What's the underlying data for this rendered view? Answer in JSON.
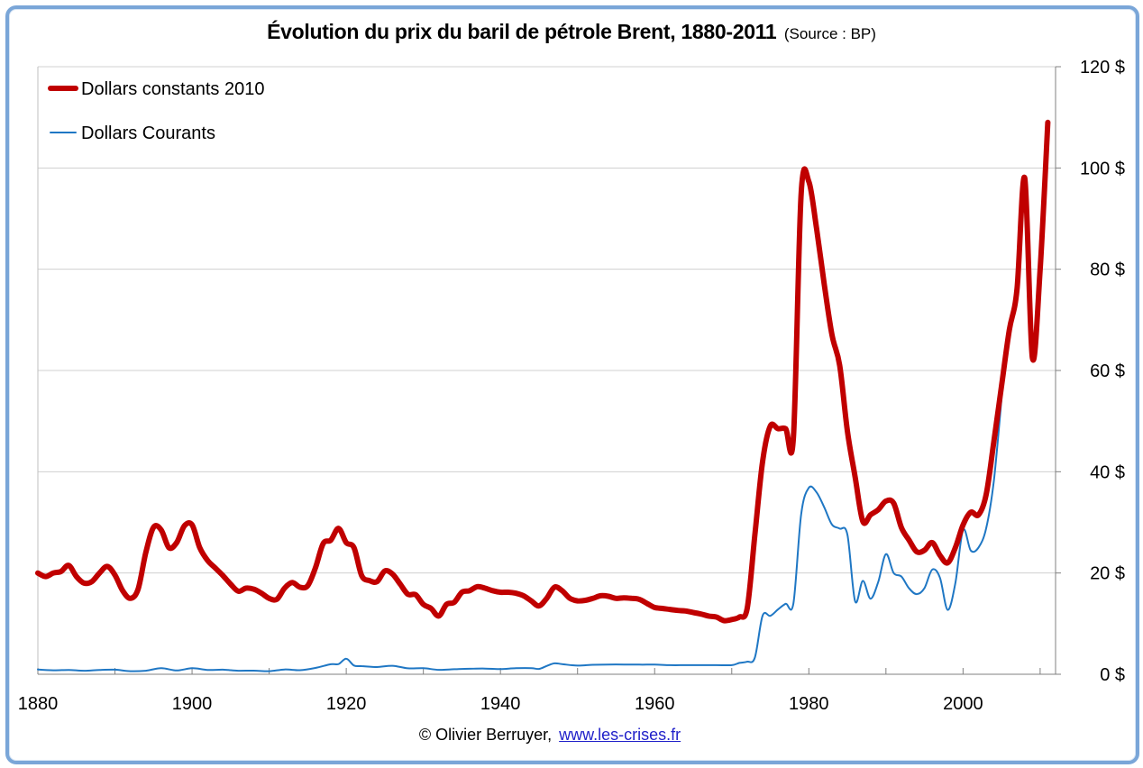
{
  "page": {
    "title": "Évolution du prix du baril de pétrole Brent, 1880-2011",
    "subtitle": "(Source : BP)",
    "credit_author": "© Olivier Berruyer,",
    "credit_link": "www.les-crises.fr"
  },
  "colors": {
    "constant": "#c00000",
    "current": "#1f77c4",
    "grid": "#d0d0d0",
    "frame": "#7aa6d8"
  },
  "chart_data": {
    "type": "line",
    "title": "Évolution du prix du baril de pétrole Brent, 1880-2011",
    "subtitle": "(Source : BP)",
    "xlabel": "",
    "ylabel": "",
    "xlim": [
      1880,
      2012
    ],
    "ylim": [
      0,
      120
    ],
    "x_ticks": [
      1880,
      1900,
      1920,
      1940,
      1960,
      1980,
      2000
    ],
    "x_tick_labels": [
      "1880",
      "1900",
      "1920",
      "1940",
      "1960",
      "1980",
      "2000"
    ],
    "y_ticks": [
      0,
      20,
      40,
      60,
      80,
      100,
      120
    ],
    "y_tick_labels": [
      "0 $",
      "20 $",
      "40 $",
      "60 $",
      "80 $",
      "100 $",
      "120 $"
    ],
    "y_axis_side": "right",
    "grid": "horizontal",
    "legend_position": "top-left",
    "series": [
      {
        "name": "Dollars constants 2010",
        "color": "#c00000",
        "line_style": "thick",
        "x": [
          1880,
          1881,
          1882,
          1883,
          1884,
          1885,
          1886,
          1887,
          1888,
          1889,
          1890,
          1891,
          1892,
          1893,
          1894,
          1895,
          1896,
          1897,
          1898,
          1899,
          1900,
          1901,
          1902,
          1903,
          1904,
          1905,
          1906,
          1907,
          1908,
          1909,
          1910,
          1911,
          1912,
          1913,
          1914,
          1915,
          1916,
          1917,
          1918,
          1919,
          1920,
          1921,
          1922,
          1923,
          1924,
          1925,
          1926,
          1927,
          1928,
          1929,
          1930,
          1931,
          1932,
          1933,
          1934,
          1935,
          1936,
          1937,
          1938,
          1939,
          1940,
          1941,
          1942,
          1943,
          1944,
          1945,
          1946,
          1947,
          1948,
          1949,
          1950,
          1951,
          1952,
          1953,
          1954,
          1955,
          1956,
          1957,
          1958,
          1959,
          1960,
          1961,
          1962,
          1963,
          1964,
          1965,
          1966,
          1967,
          1968,
          1969,
          1970,
          1971,
          1972,
          1973,
          1974,
          1975,
          1976,
          1977,
          1978,
          1979,
          1980,
          1981,
          1982,
          1983,
          1984,
          1985,
          1986,
          1987,
          1988,
          1989,
          1990,
          1991,
          1992,
          1993,
          1994,
          1995,
          1996,
          1997,
          1998,
          1999,
          2000,
          2001,
          2002,
          2003,
          2004,
          2005,
          2006,
          2007,
          2008,
          2009,
          2010,
          2011
        ],
        "values": [
          20,
          19.3,
          20,
          20.3,
          21.5,
          19.3,
          18,
          18.3,
          20,
          21.3,
          19.6,
          16.5,
          15,
          16.8,
          24,
          29,
          28.5,
          25,
          26,
          29.3,
          29.5,
          25,
          22.5,
          21,
          19.5,
          17.8,
          16.4,
          17,
          16.8,
          16,
          15,
          14.8,
          17,
          18.1,
          17.2,
          17.5,
          21,
          25.8,
          26.5,
          28.8,
          26,
          25,
          19.5,
          18.5,
          18.3,
          20.4,
          19.8,
          17.8,
          15.8,
          15.7,
          13.8,
          13,
          11.5,
          13.8,
          14.2,
          16.2,
          16.5,
          17.3,
          17,
          16.5,
          16.2,
          16.2,
          16,
          15.5,
          14.5,
          13.5,
          15,
          17.2,
          16.5,
          15,
          14.5,
          14.6,
          15,
          15.5,
          15.4,
          15,
          15.1,
          15,
          14.8,
          14,
          13.2,
          13,
          12.8,
          12.6,
          12.5,
          12.2,
          11.9,
          11.5,
          11.3,
          10.6,
          10.8,
          11.3,
          13,
          27.5,
          42,
          49,
          48.5,
          48.5,
          46.8,
          95,
          97.3,
          88,
          77,
          67,
          61,
          48,
          39,
          30.2,
          31.5,
          32.5,
          34.2,
          33.8,
          29,
          26.5,
          24.2,
          24.5,
          26,
          23.5,
          22,
          25,
          29.5,
          32,
          31.5,
          35.5,
          46,
          57,
          68,
          76,
          98,
          62.5,
          80,
          109
        ]
      },
      {
        "name": "Dollars Courants",
        "color": "#1f77c4",
        "line_style": "thin",
        "x": [
          1880,
          1882,
          1884,
          1886,
          1888,
          1890,
          1892,
          1894,
          1896,
          1898,
          1900,
          1902,
          1904,
          1906,
          1908,
          1910,
          1912,
          1914,
          1916,
          1918,
          1919,
          1920,
          1921,
          1922,
          1924,
          1926,
          1928,
          1930,
          1932,
          1934,
          1936,
          1938,
          1940,
          1942,
          1944,
          1945,
          1946,
          1947,
          1948,
          1950,
          1952,
          1954,
          1956,
          1958,
          1960,
          1962,
          1964,
          1966,
          1968,
          1970,
          1971,
          1972,
          1973,
          1974,
          1975,
          1976,
          1977,
          1978,
          1979,
          1980,
          1981,
          1982,
          1983,
          1984,
          1985,
          1986,
          1987,
          1988,
          1989,
          1990,
          1991,
          1992,
          1993,
          1994,
          1995,
          1996,
          1997,
          1998,
          1999,
          2000,
          2001,
          2002,
          2003,
          2004,
          2005
        ],
        "values": [
          0.94,
          0.78,
          0.85,
          0.7,
          0.85,
          0.9,
          0.6,
          0.7,
          1.2,
          0.75,
          1.2,
          0.85,
          0.9,
          0.7,
          0.72,
          0.61,
          0.95,
          0.81,
          1.25,
          1.98,
          2.01,
          3.07,
          1.73,
          1.61,
          1.43,
          1.68,
          1.17,
          1.19,
          0.87,
          1,
          1.09,
          1.13,
          1.02,
          1.19,
          1.21,
          1.05,
          1.63,
          2.16,
          2,
          1.71,
          1.87,
          1.93,
          1.93,
          1.9,
          1.9,
          1.8,
          1.8,
          1.8,
          1.8,
          1.8,
          2.24,
          2.48,
          3.29,
          11.58,
          11.53,
          12.8,
          13.92,
          14.02,
          31.61,
          36.83,
          35.93,
          32.97,
          29.55,
          28.78,
          27.56,
          14.43,
          18.44,
          14.92,
          18.23,
          23.73,
          20,
          19.32,
          16.97,
          15.82,
          17.02,
          20.67,
          19.09,
          12.72,
          17.97,
          28.5,
          24.44,
          25.02,
          28.83,
          38.27,
          54.52
        ]
      }
    ]
  }
}
